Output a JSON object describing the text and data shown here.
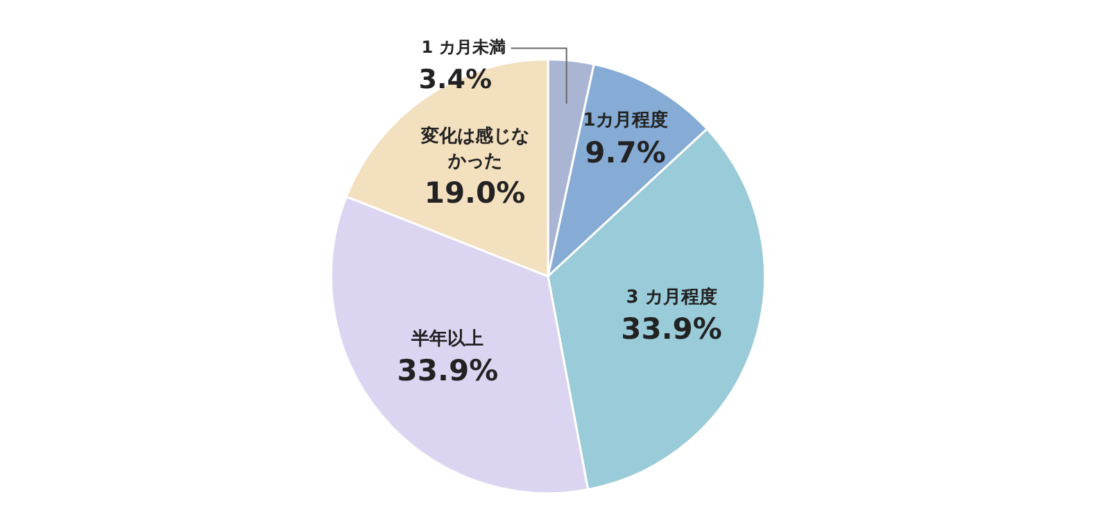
{
  "chart_data": {
    "type": "pie",
    "categories": [
      "1 カ月未満",
      "1カ月程度",
      "3 カ月程度",
      "半年以上",
      "変化は感じなかった"
    ],
    "values": [
      3.4,
      9.7,
      33.9,
      33.9,
      19.0
    ],
    "value_labels": [
      "3.4%",
      "9.7%",
      "33.9%",
      "33.9%",
      "19.0%"
    ],
    "colors": [
      "#a9b5d3",
      "#86acd6",
      "#99cbd9",
      "#dcd5f1",
      "#f3e0bf"
    ],
    "legend": false
  }
}
